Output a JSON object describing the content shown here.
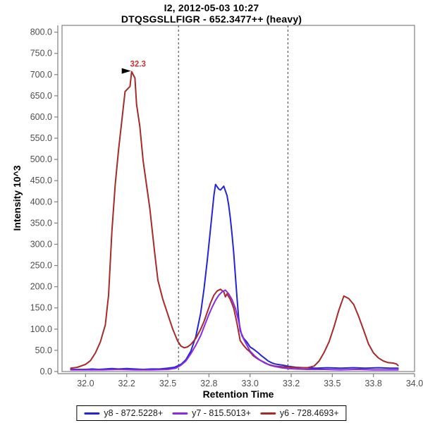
{
  "chart_data": {
    "type": "line",
    "title": "I2, 2012-05-03 10:27",
    "subtitle": "DTQSGSLLFIGR - 652.3477++ (heavy)",
    "xlabel": "Retention Time",
    "ylabel": "Intensity 10^3",
    "xlim": [
      31.857,
      34.0
    ],
    "ylim": [
      0,
      816
    ],
    "grid": false,
    "legend_position": "bottom",
    "x_ticks": {
      "values": [
        32.0,
        32.25,
        32.5,
        32.75,
        33.0,
        33.25,
        33.5,
        33.75,
        34.0
      ],
      "labels": [
        "32.0",
        "32.2",
        "32.5",
        "32.8",
        "33.0",
        "33.2",
        "33.5",
        "33.8",
        "34.0"
      ]
    },
    "y_ticks": {
      "values": [
        0,
        50,
        100,
        150,
        200,
        250,
        300,
        350,
        400,
        450,
        500,
        550,
        600,
        650,
        700,
        750,
        800
      ],
      "labels": [
        "0.0",
        "50.0",
        "100.0",
        "150.0",
        "200.0",
        "250.0",
        "300.0",
        "350.0",
        "400.0",
        "450.0",
        "500.0",
        "550.0",
        "600.0",
        "650.0",
        "700.0",
        "750.0",
        "800.0"
      ]
    },
    "integration_boundaries": [
      32.565,
      33.23
    ],
    "boundary_color": "#3a3a3a",
    "frame_color": "#808080",
    "peak_annotation": {
      "label": "32.3",
      "rt": 32.28,
      "intensity": 707,
      "text_color": "#cc3333",
      "flag_color": "#000000"
    },
    "draw_order": [
      0,
      2,
      1
    ],
    "series": [
      {
        "name": "y8 - 872.5228+",
        "color": "#2424d6",
        "points": [
          [
            31.91,
            5
          ],
          [
            32.0,
            5
          ],
          [
            32.04,
            6
          ],
          [
            32.08,
            5
          ],
          [
            32.12,
            6
          ],
          [
            32.16,
            7
          ],
          [
            32.2,
            6
          ],
          [
            32.25,
            7
          ],
          [
            32.3,
            6
          ],
          [
            32.35,
            5
          ],
          [
            32.4,
            6
          ],
          [
            32.45,
            6
          ],
          [
            32.5,
            8
          ],
          [
            32.54,
            10
          ],
          [
            32.58,
            17
          ],
          [
            32.61,
            28
          ],
          [
            32.64,
            48
          ],
          [
            32.67,
            82
          ],
          [
            32.7,
            138
          ],
          [
            32.72,
            195
          ],
          [
            32.74,
            262
          ],
          [
            32.76,
            338
          ],
          [
            32.78,
            415
          ],
          [
            32.79,
            441
          ],
          [
            32.81,
            430
          ],
          [
            32.82,
            428
          ],
          [
            32.84,
            437
          ],
          [
            32.86,
            415
          ],
          [
            32.87,
            392
          ],
          [
            32.88,
            362
          ],
          [
            32.89,
            325
          ],
          [
            32.9,
            282
          ],
          [
            32.91,
            230
          ],
          [
            32.92,
            178
          ],
          [
            32.93,
            130
          ],
          [
            32.94,
            96
          ],
          [
            32.96,
            79
          ],
          [
            32.98,
            70
          ],
          [
            33.0,
            58
          ],
          [
            33.02,
            53
          ],
          [
            33.05,
            44
          ],
          [
            33.07,
            37
          ],
          [
            33.09,
            31
          ],
          [
            33.11,
            25
          ],
          [
            33.13,
            21
          ],
          [
            33.15,
            18
          ],
          [
            33.18,
            16
          ],
          [
            33.2,
            15
          ],
          [
            33.24,
            12
          ],
          [
            33.28,
            10
          ],
          [
            33.33,
            9
          ],
          [
            33.4,
            8
          ],
          [
            33.47,
            9
          ],
          [
            33.55,
            8
          ],
          [
            33.63,
            9
          ],
          [
            33.7,
            8
          ],
          [
            33.78,
            9
          ],
          [
            33.85,
            8
          ],
          [
            33.9,
            8
          ]
        ]
      },
      {
        "name": "y7 - 815.5013+",
        "color": "#8a2be2",
        "points": [
          [
            31.91,
            4
          ],
          [
            32.0,
            4
          ],
          [
            32.1,
            4
          ],
          [
            32.2,
            5
          ],
          [
            32.3,
            4
          ],
          [
            32.4,
            4
          ],
          [
            32.5,
            5
          ],
          [
            32.55,
            8
          ],
          [
            32.58,
            15
          ],
          [
            32.61,
            25
          ],
          [
            32.64,
            42
          ],
          [
            32.67,
            62
          ],
          [
            32.7,
            85
          ],
          [
            32.73,
            115
          ],
          [
            32.75,
            135
          ],
          [
            32.77,
            152
          ],
          [
            32.79,
            168
          ],
          [
            32.81,
            180
          ],
          [
            32.83,
            188
          ],
          [
            32.85,
            192
          ],
          [
            32.87,
            183
          ],
          [
            32.89,
            170
          ],
          [
            32.91,
            150
          ],
          [
            32.93,
            120
          ],
          [
            32.95,
            85
          ],
          [
            32.97,
            70
          ],
          [
            33.0,
            48
          ],
          [
            33.03,
            36
          ],
          [
            33.06,
            27
          ],
          [
            33.09,
            20
          ],
          [
            33.12,
            15
          ],
          [
            33.15,
            12
          ],
          [
            33.19,
            9
          ],
          [
            33.23,
            7
          ],
          [
            33.28,
            6
          ],
          [
            33.35,
            5
          ],
          [
            33.45,
            5
          ],
          [
            33.55,
            4
          ],
          [
            33.65,
            5
          ],
          [
            33.75,
            4
          ],
          [
            33.85,
            4
          ],
          [
            33.9,
            4
          ]
        ]
      },
      {
        "name": "y6 - 728.4693+",
        "color": "#a52a2a",
        "points": [
          [
            31.91,
            8
          ],
          [
            31.95,
            10
          ],
          [
            32.0,
            17
          ],
          [
            32.03,
            26
          ],
          [
            32.06,
            44
          ],
          [
            32.09,
            70
          ],
          [
            32.12,
            110
          ],
          [
            32.14,
            180
          ],
          [
            32.16,
            330
          ],
          [
            32.18,
            440
          ],
          [
            32.2,
            520
          ],
          [
            32.22,
            590
          ],
          [
            32.24,
            660
          ],
          [
            32.26,
            668
          ],
          [
            32.27,
            672
          ],
          [
            32.28,
            707
          ],
          [
            32.3,
            692
          ],
          [
            32.31,
            630
          ],
          [
            32.33,
            577
          ],
          [
            32.35,
            497
          ],
          [
            32.39,
            386
          ],
          [
            32.42,
            280
          ],
          [
            32.44,
            215
          ],
          [
            32.47,
            170
          ],
          [
            32.5,
            135
          ],
          [
            32.53,
            100
          ],
          [
            32.56,
            72
          ],
          [
            32.58,
            60
          ],
          [
            32.6,
            56
          ],
          [
            32.62,
            58
          ],
          [
            32.64,
            64
          ],
          [
            32.67,
            78
          ],
          [
            32.7,
            100
          ],
          [
            32.72,
            118
          ],
          [
            32.74,
            140
          ],
          [
            32.76,
            162
          ],
          [
            32.78,
            180
          ],
          [
            32.8,
            190
          ],
          [
            32.82,
            194
          ],
          [
            32.84,
            188
          ],
          [
            32.85,
            176
          ],
          [
            32.86,
            183
          ],
          [
            32.88,
            170
          ],
          [
            32.9,
            150
          ],
          [
            32.92,
            115
          ],
          [
            32.94,
            73
          ],
          [
            32.96,
            62
          ],
          [
            32.98,
            53
          ],
          [
            33.0,
            46
          ],
          [
            33.02,
            37
          ],
          [
            33.05,
            29
          ],
          [
            33.08,
            23
          ],
          [
            33.11,
            17
          ],
          [
            33.15,
            13
          ],
          [
            33.2,
            11
          ],
          [
            33.25,
            10
          ],
          [
            33.3,
            9
          ],
          [
            33.35,
            9
          ],
          [
            33.39,
            13
          ],
          [
            33.42,
            25
          ],
          [
            33.45,
            45
          ],
          [
            33.48,
            70
          ],
          [
            33.51,
            105
          ],
          [
            33.54,
            145
          ],
          [
            33.57,
            178
          ],
          [
            33.6,
            172
          ],
          [
            33.63,
            158
          ],
          [
            33.66,
            130
          ],
          [
            33.69,
            98
          ],
          [
            33.72,
            65
          ],
          [
            33.75,
            44
          ],
          [
            33.78,
            32
          ],
          [
            33.81,
            25
          ],
          [
            33.84,
            21
          ],
          [
            33.87,
            20
          ],
          [
            33.89,
            18
          ],
          [
            33.9,
            14
          ]
        ]
      }
    ]
  },
  "legend": {
    "items": [
      {
        "label": "y8 - 872.5228+",
        "color": "#2424d6"
      },
      {
        "label": "y7 - 815.5013+",
        "color": "#8a2be2"
      },
      {
        "label": "y6 - 728.4693+",
        "color": "#a52a2a"
      }
    ]
  }
}
